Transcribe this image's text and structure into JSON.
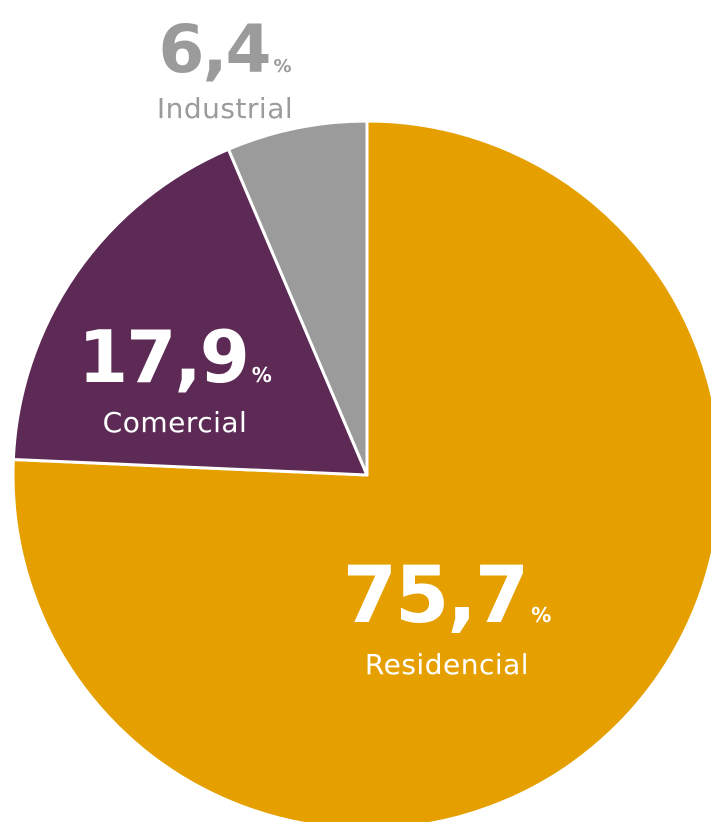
{
  "chart_data": {
    "type": "pie",
    "start_angle_deg": -90,
    "direction": "clockwise",
    "slices": [
      {
        "label": "Residencial",
        "value": 75.7,
        "display_value": "75,7",
        "unit": "%",
        "color": "#E5A000",
        "text_color": "#FFFFFF"
      },
      {
        "label": "Comercial",
        "value": 17.9,
        "display_value": "17,9",
        "unit": "%",
        "color": "#5C2A55",
        "text_color": "#FFFFFF"
      },
      {
        "label": "Industrial",
        "value": 6.4,
        "display_value": "6,4",
        "unit": "%",
        "color": "#9B9B9B",
        "text_color": "#9B9B9B"
      }
    ]
  }
}
